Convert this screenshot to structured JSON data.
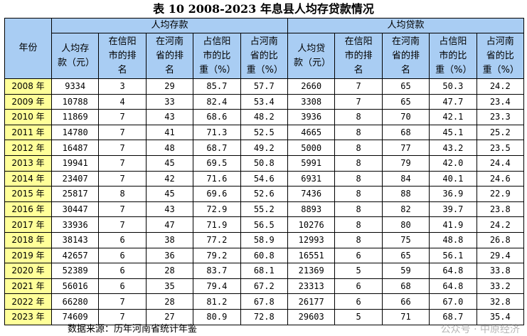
{
  "title": "表 10 2008-2023 年息县人均存贷款情况",
  "header": {
    "year": "年份",
    "deposit_group": "人均存款",
    "loan_group": "人均贷款",
    "deposit_cols": [
      "人均存款（元）",
      "在信阳市的排名",
      "在河南省的排名",
      "占信阳市的比重（%）",
      "占河南省的比重（%）"
    ],
    "loan_cols": [
      "人均贷款（元）",
      "在信阳市的排名",
      "在河南省的排名",
      "占信阳市的比重（%）",
      "占河南省的比重（%）"
    ]
  },
  "rows": [
    [
      "2008 年",
      "9334",
      "3",
      "29",
      "85.7",
      "57.7",
      "2660",
      "7",
      "65",
      "50.3",
      "24.2"
    ],
    [
      "2009 年",
      "10788",
      "4",
      "33",
      "82.4",
      "53.4",
      "3308",
      "7",
      "65",
      "47.7",
      "23.4"
    ],
    [
      "2010 年",
      "11869",
      "7",
      "43",
      "68.6",
      "48.2",
      "3936",
      "8",
      "70",
      "42.1",
      "23.3"
    ],
    [
      "2011 年",
      "14780",
      "7",
      "41",
      "71.3",
      "52.5",
      "4665",
      "8",
      "68",
      "45.1",
      "25.2"
    ],
    [
      "2012 年",
      "16487",
      "7",
      "48",
      "68.7",
      "49.2",
      "5000",
      "8",
      "77",
      "43.2",
      "23.5"
    ],
    [
      "2013 年",
      "19941",
      "7",
      "45",
      "69.5",
      "50.8",
      "5991",
      "8",
      "79",
      "42.0",
      "24.4"
    ],
    [
      "2014 年",
      "23407",
      "7",
      "42",
      "71.6",
      "54.6",
      "6931",
      "8",
      "84",
      "40.1",
      "24.6"
    ],
    [
      "2015 年",
      "25817",
      "8",
      "45",
      "69.6",
      "52.6",
      "7436",
      "8",
      "88",
      "36.9",
      "22.9"
    ],
    [
      "2016 年",
      "30447",
      "7",
      "43",
      "72.9",
      "55.2",
      "8893",
      "8",
      "82",
      "39.7",
      "23.8"
    ],
    [
      "2017 年",
      "33936",
      "7",
      "47",
      "71.9",
      "56.5",
      "10276",
      "8",
      "80",
      "41.9",
      "24.2"
    ],
    [
      "2018 年",
      "38143",
      "6",
      "38",
      "77.2",
      "58.9",
      "12993",
      "8",
      "75",
      "48.8",
      "26.8"
    ],
    [
      "2019 年",
      "42657",
      "6",
      "36",
      "79.2",
      "60.8",
      "16551",
      "6",
      "65",
      "56.1",
      "29.4"
    ],
    [
      "2020 年",
      "52389",
      "6",
      "28",
      "83.7",
      "68.1",
      "21369",
      "5",
      "59",
      "64.8",
      "33.8"
    ],
    [
      "2021 年",
      "56016",
      "6",
      "35",
      "79.4",
      "67.2",
      "23313",
      "6",
      "68",
      "64.8",
      "33.2"
    ],
    [
      "2022 年",
      "66280",
      "7",
      "28",
      "81.2",
      "67.8",
      "26177",
      "6",
      "66",
      "67.0",
      "32.8"
    ],
    [
      "2023 年",
      "74609",
      "7",
      "27",
      "80.9",
      "72.8",
      "29603",
      "5",
      "71",
      "68.7",
      "35.4"
    ]
  ],
  "source": "数据来源：历年河南省统计年鉴",
  "watermark": "公众号 · 中原经济",
  "colors": {
    "header_bg": "#a9cdf3",
    "year_bg": "#ffff99"
  }
}
